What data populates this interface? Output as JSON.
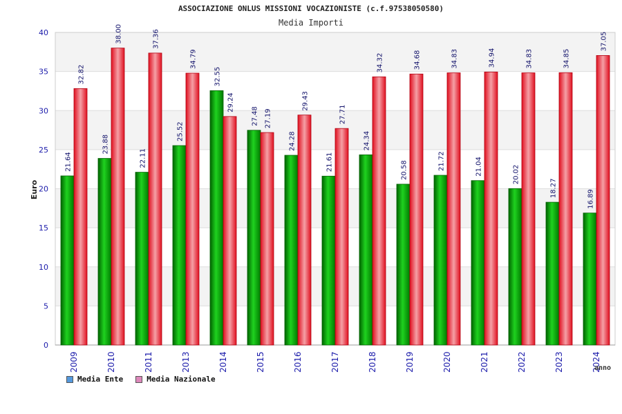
{
  "chart_data": {
    "type": "bar",
    "title": "ASSOCIAZIONE ONLUS MISSIONI VOCAZIONISTE (c.f.97538050580)",
    "subtitle": "Media Importi",
    "xlabel": "anno",
    "ylabel": "Euro",
    "ylim": [
      0,
      40
    ],
    "yticks": [
      0,
      5,
      10,
      15,
      20,
      25,
      30,
      35,
      40
    ],
    "categories": [
      "2009",
      "2010",
      "2011",
      "2013",
      "2014",
      "2015",
      "2016",
      "2017",
      "2018",
      "2019",
      "2020",
      "2021",
      "2022",
      "2023",
      "2024"
    ],
    "series": [
      {
        "name": "Media Ente",
        "color": "#00a000",
        "legend_color": "#5599dd",
        "values": [
          21.64,
          23.88,
          22.11,
          25.52,
          32.55,
          27.48,
          24.28,
          21.61,
          24.34,
          20.58,
          21.72,
          21.04,
          20.02,
          18.27,
          16.89
        ]
      },
      {
        "name": "Media Nazionale",
        "color": "#e8202a",
        "legend_color": "#dd88bb",
        "values": [
          32.82,
          38.0,
          37.36,
          34.79,
          29.24,
          27.19,
          29.43,
          27.71,
          34.32,
          34.68,
          34.83,
          34.94,
          34.83,
          34.85,
          37.05
        ]
      }
    ],
    "value_labels": [
      [
        "21.64",
        "23.88",
        "22.11",
        "25.52",
        "32.55",
        "27.48",
        "24.28",
        "21.61",
        "24.34",
        "20.58",
        "21.72",
        "21.04",
        "20.02",
        "18.27",
        "16.89"
      ],
      [
        "32.82",
        "38.00",
        "37.36",
        "34.79",
        "29.24",
        "27.19",
        "29.43",
        "27.71",
        "34.32",
        "34.68",
        "34.83",
        "34.94",
        "34.83",
        "34.85",
        "37.05"
      ]
    ],
    "grid": true,
    "legend_position": "bottom-left"
  }
}
